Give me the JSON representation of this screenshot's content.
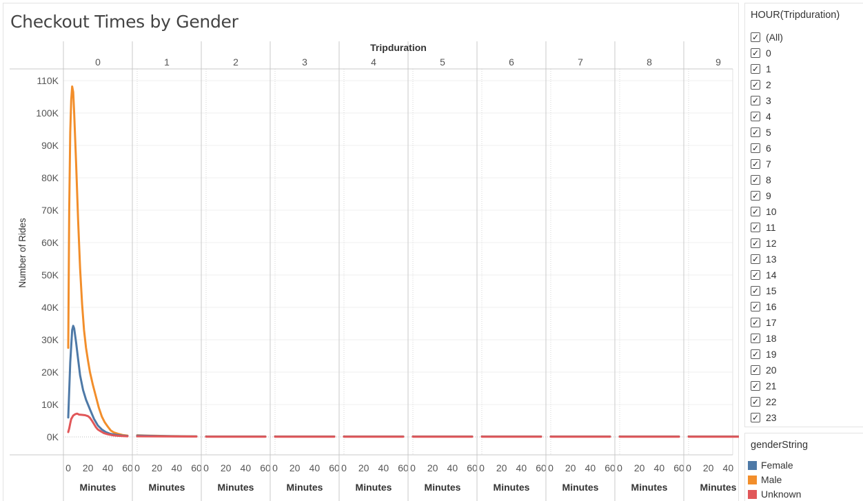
{
  "colors": {
    "female": "#4e79a7",
    "male": "#f28e2b",
    "unknown": "#e15759",
    "gridline": "#efefef",
    "panel_divider": "#c9c9c9"
  },
  "chart_data": {
    "type": "line",
    "title": "Checkout Times by Gender",
    "column_header": "Tripduration",
    "panels": [
      "0",
      "1",
      "2",
      "3",
      "4",
      "5",
      "6",
      "7",
      "8",
      "9"
    ],
    "xlabel": "Minutes",
    "x_ticks": [
      0,
      20,
      40,
      60
    ],
    "xlim": [
      0,
      60
    ],
    "ylabel": "Number of Rides",
    "ylim": [
      0,
      110000
    ],
    "y_ticks": [
      0,
      10000,
      20000,
      30000,
      40000,
      50000,
      60000,
      70000,
      80000,
      90000,
      100000,
      110000
    ],
    "y_tick_labels": [
      "0K",
      "10K",
      "20K",
      "30K",
      "40K",
      "50K",
      "60K",
      "70K",
      "80K",
      "90K",
      "100K",
      "110K"
    ],
    "grid": true,
    "legend_position": "right",
    "series": [
      {
        "name": "Female",
        "color_key": "female",
        "panel0": [
          [
            0,
            6000
          ],
          [
            2,
            23000
          ],
          [
            4,
            33000
          ],
          [
            5,
            34300
          ],
          [
            6,
            33500
          ],
          [
            8,
            29000
          ],
          [
            10,
            24000
          ],
          [
            12,
            19000
          ],
          [
            15,
            14500
          ],
          [
            18,
            11500
          ],
          [
            22,
            8500
          ],
          [
            26,
            5600
          ],
          [
            30,
            3500
          ],
          [
            34,
            2300
          ],
          [
            38,
            1500
          ],
          [
            42,
            1000
          ],
          [
            46,
            750
          ],
          [
            50,
            550
          ],
          [
            55,
            400
          ],
          [
            60,
            300
          ]
        ],
        "other_panels": [
          [
            0,
            400
          ],
          [
            10,
            330
          ],
          [
            20,
            270
          ],
          [
            30,
            230
          ],
          [
            40,
            190
          ],
          [
            50,
            170
          ],
          [
            60,
            150
          ]
        ],
        "later_panels": [
          [
            0,
            100
          ],
          [
            60,
            100
          ]
        ]
      },
      {
        "name": "Male",
        "color_key": "male",
        "panel0": [
          [
            0,
            27500
          ],
          [
            1,
            70000
          ],
          [
            2,
            94000
          ],
          [
            3,
            104000
          ],
          [
            4,
            108200
          ],
          [
            5,
            106500
          ],
          [
            6,
            100000
          ],
          [
            8,
            84000
          ],
          [
            10,
            67000
          ],
          [
            12,
            52000
          ],
          [
            14,
            41000
          ],
          [
            16,
            33000
          ],
          [
            18,
            27500
          ],
          [
            20,
            23500
          ],
          [
            22,
            20000
          ],
          [
            25,
            16000
          ],
          [
            28,
            12500
          ],
          [
            31,
            9000
          ],
          [
            34,
            6300
          ],
          [
            37,
            4500
          ],
          [
            40,
            3200
          ],
          [
            43,
            2000
          ],
          [
            46,
            1400
          ],
          [
            50,
            1000
          ],
          [
            55,
            600
          ],
          [
            60,
            400
          ]
        ],
        "other_panels": [
          [
            0,
            500
          ],
          [
            10,
            400
          ],
          [
            20,
            330
          ],
          [
            30,
            270
          ],
          [
            40,
            230
          ],
          [
            50,
            200
          ],
          [
            60,
            180
          ]
        ],
        "later_panels": [
          [
            0,
            120
          ],
          [
            60,
            120
          ]
        ]
      },
      {
        "name": "Unknown",
        "color_key": "unknown",
        "panel0": [
          [
            0,
            1500
          ],
          [
            1,
            2600
          ],
          [
            2,
            4200
          ],
          [
            3,
            5500
          ],
          [
            5,
            6600
          ],
          [
            7,
            7000
          ],
          [
            9,
            7200
          ],
          [
            11,
            6900
          ],
          [
            14,
            6800
          ],
          [
            17,
            6700
          ],
          [
            20,
            6400
          ],
          [
            22,
            5900
          ],
          [
            24,
            5000
          ],
          [
            26,
            4000
          ],
          [
            28,
            3000
          ],
          [
            30,
            2300
          ],
          [
            33,
            1700
          ],
          [
            36,
            1200
          ],
          [
            40,
            800
          ],
          [
            45,
            500
          ],
          [
            50,
            350
          ],
          [
            55,
            250
          ],
          [
            60,
            200
          ]
        ],
        "other_panels": [
          [
            0,
            200
          ],
          [
            20,
            150
          ],
          [
            40,
            120
          ],
          [
            60,
            100
          ]
        ],
        "later_panels": [
          [
            0,
            60
          ],
          [
            60,
            60
          ]
        ]
      }
    ]
  },
  "filter": {
    "title": "HOUR(Tripduration)",
    "items": [
      "(All)",
      "0",
      "1",
      "2",
      "3",
      "4",
      "5",
      "6",
      "7",
      "8",
      "9",
      "10",
      "11",
      "12",
      "13",
      "14",
      "15",
      "16",
      "17",
      "18",
      "19",
      "20",
      "21",
      "22",
      "23"
    ],
    "checked_icon": "check-icon"
  },
  "legend": {
    "title": "genderString",
    "items": [
      {
        "label": "Female",
        "color": "#4e79a7"
      },
      {
        "label": "Male",
        "color": "#f28e2b"
      },
      {
        "label": "Unknown",
        "color": "#e15759"
      }
    ]
  }
}
